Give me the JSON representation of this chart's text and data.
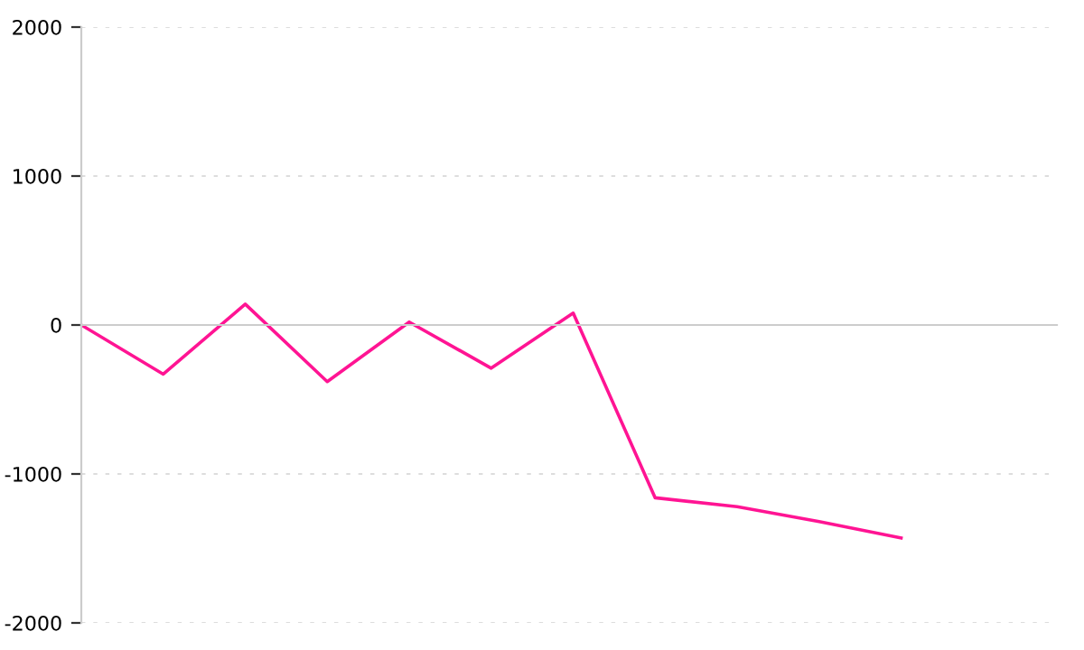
{
  "chart_data": {
    "type": "line",
    "categories": [
      null,
      null,
      null,
      null,
      null,
      null,
      null,
      null,
      null,
      null,
      null
    ],
    "series": [
      {
        "color": "#ff1493",
        "values": [
          0,
          -330,
          140,
          -380,
          20,
          -290,
          80,
          -1160,
          -1220,
          -1320,
          -1430
        ]
      }
    ],
    "ylim": [
      -2000,
      2000
    ],
    "yticks": [
      -2000,
      -1000,
      0,
      1000,
      2000
    ],
    "grid": "y",
    "tick_labels": "y",
    "line_style": "solid",
    "marker": "none"
  }
}
